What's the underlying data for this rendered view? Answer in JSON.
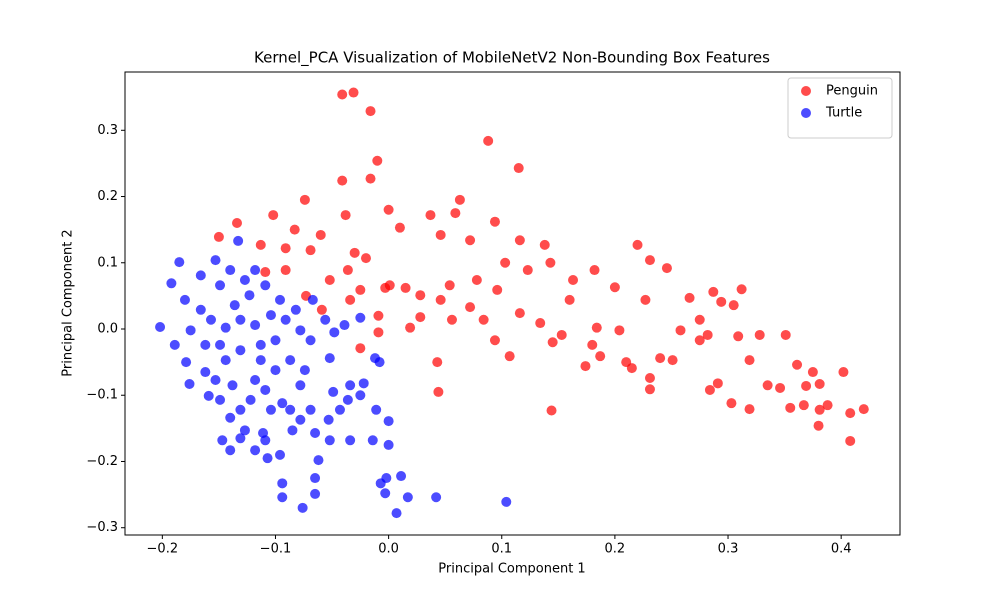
{
  "chart_data": {
    "type": "scatter",
    "title": "Kernel_PCA Visualization of MobileNetV2 Non-Bounding Box Features",
    "x_label": "Principal Component 1",
    "y_label": "Principal Component 2",
    "xlim": [
      -0.233,
      0.452
    ],
    "ylim": [
      -0.311,
      0.388
    ],
    "xticks": [
      {
        "value": -0.2,
        "label": "−0.2"
      },
      {
        "value": -0.1,
        "label": "−0.1"
      },
      {
        "value": 0,
        "label": "0.0"
      },
      0.1,
      0.2,
      0.3,
      0.4
    ],
    "yticks": [
      {
        "value": -0.3,
        "label": "−0.3"
      },
      {
        "value": -0.2,
        "label": "−0.2"
      },
      {
        "value": -0.1,
        "label": "−0.1"
      },
      {
        "value": 0,
        "label": "0.0"
      },
      0.1,
      0.2,
      0.3
    ],
    "legend": "upper right",
    "alpha": 0.7,
    "series": [
      {
        "name": "Penguin",
        "color": "#ff0000",
        "x": [
          -0.041,
          -0.031,
          -0.016,
          0.088,
          0.115,
          -0.01,
          -0.016,
          -0.041,
          -0.074,
          0.063,
          -0.134,
          -0.102,
          -0.083,
          -0.06,
          -0.038,
          0.0,
          0.037,
          0.059,
          0.094,
          0.116,
          0.138,
          -0.15,
          -0.113,
          -0.091,
          -0.069,
          -0.03,
          0.01,
          0.046,
          0.072,
          0.103,
          0.143,
          0.163,
          0.182,
          0.2,
          0.22,
          0.231,
          0.246,
          0.227,
          0.266,
          0.287,
          0.294,
          0.312,
          0.305,
          0.282,
          0.309,
          0.328,
          0.351,
          0.361,
          0.375,
          0.381,
          0.402,
          0.369,
          0.346,
          0.335,
          0.319,
          0.291,
          0.284,
          0.303,
          0.319,
          0.355,
          0.367,
          0.381,
          0.388,
          0.408,
          0.42,
          0.408,
          0.38,
          0.275,
          0.258,
          0.251,
          0.24,
          0.231,
          0.231,
          0.215,
          0.21,
          0.204,
          0.184,
          0.187,
          0.174,
          0.18,
          0.153,
          0.145,
          0.144,
          0.134,
          0.116,
          0.107,
          0.094,
          0.084,
          0.072,
          0.056,
          0.046,
          0.028,
          0.043,
          0.044,
          0.019,
          0.028,
          0.015,
          -0.003,
          -0.025,
          -0.034,
          -0.025,
          -0.009,
          -0.009,
          -0.036,
          -0.052,
          -0.073,
          -0.059,
          -0.109,
          -0.091,
          -0.02,
          0.001,
          0.054,
          0.078,
          0.096,
          0.123,
          0.16,
          0.275
        ],
        "y": [
          0.354,
          0.357,
          0.329,
          0.284,
          0.243,
          0.254,
          0.227,
          0.224,
          0.195,
          0.195,
          0.16,
          0.172,
          0.15,
          0.142,
          0.172,
          0.18,
          0.172,
          0.175,
          0.162,
          0.134,
          0.127,
          0.139,
          0.127,
          0.122,
          0.119,
          0.115,
          0.153,
          0.142,
          0.134,
          0.1,
          0.1,
          0.074,
          0.089,
          0.063,
          0.127,
          0.104,
          0.092,
          0.044,
          0.047,
          0.056,
          0.041,
          0.06,
          0.036,
          -0.009,
          -0.011,
          -0.009,
          -0.009,
          -0.054,
          -0.065,
          -0.083,
          -0.065,
          -0.086,
          -0.089,
          -0.085,
          -0.047,
          -0.082,
          -0.092,
          -0.112,
          -0.121,
          -0.119,
          -0.115,
          -0.122,
          -0.115,
          -0.127,
          -0.121,
          -0.169,
          -0.146,
          0.014,
          -0.002,
          -0.047,
          -0.044,
          -0.074,
          -0.091,
          -0.059,
          -0.05,
          -0.002,
          0.002,
          -0.041,
          -0.056,
          -0.024,
          -0.009,
          -0.02,
          -0.123,
          0.009,
          0.024,
          -0.041,
          -0.017,
          0.014,
          0.033,
          0.014,
          0.044,
          0.051,
          -0.05,
          -0.095,
          0.002,
          0.018,
          0.062,
          0.062,
          0.059,
          0.044,
          -0.029,
          0.02,
          -0.005,
          0.089,
          0.074,
          0.05,
          0.029,
          0.086,
          0.089,
          0.107,
          0.066,
          0.066,
          0.074,
          0.059,
          0.089,
          0.044,
          -0.017
        ]
      },
      {
        "name": "Turtle",
        "color": "#0000ff",
        "x": [
          -0.202,
          -0.185,
          -0.192,
          -0.18,
          -0.189,
          -0.179,
          -0.176,
          -0.162,
          -0.159,
          -0.147,
          -0.14,
          -0.131,
          -0.127,
          -0.118,
          -0.111,
          -0.107,
          -0.096,
          -0.094,
          -0.094,
          -0.076,
          -0.065,
          -0.065,
          -0.062,
          -0.052,
          -0.034,
          -0.014,
          0.0,
          -0.002,
          -0.007,
          -0.003,
          0.007,
          0.011,
          0.017,
          0.042,
          0.104,
          0.0,
          -0.011,
          -0.012,
          -0.008,
          -0.022,
          -0.025,
          -0.036,
          -0.043,
          -0.049,
          -0.053,
          -0.069,
          -0.078,
          -0.085,
          -0.087,
          -0.094,
          -0.104,
          -0.109,
          -0.118,
          -0.122,
          -0.131,
          -0.14,
          -0.149,
          -0.153,
          -0.144,
          -0.131,
          -0.113,
          -0.1,
          -0.087,
          -0.074,
          -0.052,
          -0.069,
          -0.078,
          -0.091,
          -0.104,
          -0.118,
          -0.131,
          -0.144,
          -0.157,
          -0.166,
          -0.175,
          -0.162,
          -0.149,
          -0.136,
          -0.123,
          -0.109,
          -0.127,
          -0.14,
          -0.153,
          -0.166,
          -0.149,
          -0.133,
          -0.118,
          -0.096,
          -0.082,
          -0.067,
          -0.056,
          -0.039,
          -0.025,
          -0.048,
          -0.1,
          -0.113,
          -0.138,
          -0.034,
          -0.078,
          -0.065,
          -0.109
        ],
        "y": [
          0.003,
          0.101,
          0.069,
          0.044,
          -0.024,
          -0.05,
          -0.083,
          -0.065,
          -0.101,
          -0.168,
          -0.183,
          -0.165,
          -0.153,
          -0.183,
          -0.157,
          -0.195,
          -0.19,
          -0.233,
          -0.254,
          -0.27,
          -0.249,
          -0.225,
          -0.198,
          -0.168,
          -0.168,
          -0.168,
          -0.175,
          -0.225,
          -0.233,
          -0.248,
          -0.278,
          -0.222,
          -0.254,
          -0.254,
          -0.261,
          -0.139,
          -0.122,
          -0.044,
          -0.05,
          -0.082,
          -0.1,
          -0.107,
          -0.122,
          -0.095,
          -0.137,
          -0.122,
          -0.137,
          -0.153,
          -0.122,
          -0.112,
          -0.122,
          -0.092,
          -0.077,
          -0.107,
          -0.122,
          -0.134,
          -0.107,
          -0.077,
          -0.047,
          -0.032,
          -0.047,
          -0.062,
          -0.047,
          -0.062,
          -0.044,
          -0.017,
          -0.002,
          0.014,
          0.021,
          0.006,
          0.014,
          0.002,
          0.014,
          0.029,
          -0.002,
          -0.024,
          -0.024,
          0.036,
          0.051,
          0.066,
          0.074,
          0.089,
          0.104,
          0.081,
          0.066,
          0.133,
          0.089,
          0.044,
          0.029,
          0.044,
          0.014,
          0.006,
          0.017,
          -0.005,
          -0.017,
          -0.024,
          -0.085,
          -0.085,
          -0.085,
          -0.157,
          -0.168
        ]
      }
    ]
  }
}
